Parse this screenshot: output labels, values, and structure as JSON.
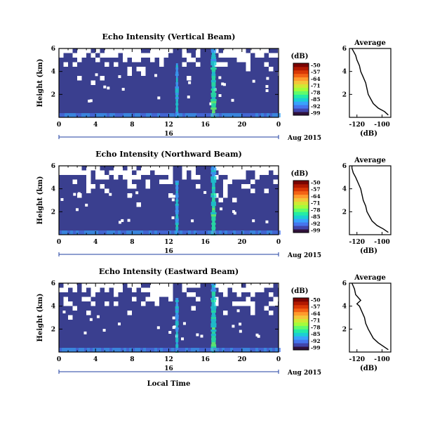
{
  "chart_data": [
    {
      "type": "heatmap",
      "title": "Echo Intensity (Vertical Beam)",
      "ylabel": "Height (km)",
      "xlabel": "",
      "x_ticks": [
        "0",
        "4",
        "8",
        "12",
        "16",
        "20",
        "0"
      ],
      "y_ticks": [
        "2",
        "4",
        "6"
      ],
      "xlim": [
        0,
        24
      ],
      "ylim": [
        0,
        6
      ],
      "date_day": "16",
      "date_label": "Aug 2015",
      "colorbar_label": "(dB)",
      "colorbar_ticks": [
        "-50",
        "-57",
        "-64",
        "-71",
        "-78",
        "-85",
        "-92",
        "-99"
      ],
      "colorbar_range": [
        -99,
        -50
      ],
      "average": {
        "title": "Average",
        "xlabel": "(dB)",
        "x_ticks": [
          "-120",
          "-100"
        ],
        "xlim": [
          -126,
          -93
        ],
        "y_ticks": [
          "2",
          "4",
          "6"
        ],
        "ylim": [
          0,
          6
        ],
        "profile": [
          [
            -95,
            0.2
          ],
          [
            -98,
            0.5
          ],
          [
            -103,
            0.8
          ],
          [
            -107,
            1.2
          ],
          [
            -109,
            1.6
          ],
          [
            -111,
            2.0
          ],
          [
            -112,
            2.5
          ],
          [
            -113,
            3.0
          ],
          [
            -115,
            3.5
          ],
          [
            -117,
            4.0
          ],
          [
            -118,
            4.5
          ],
          [
            -120,
            5.0
          ],
          [
            -121,
            5.4
          ],
          [
            -123,
            5.8
          ],
          [
            -124,
            6.0
          ]
        ]
      }
    },
    {
      "type": "heatmap",
      "title": "Echo Intensity (Northward Beam)",
      "ylabel": "Height (km)",
      "xlabel": "",
      "x_ticks": [
        "0",
        "4",
        "8",
        "12",
        "16",
        "20",
        "0"
      ],
      "y_ticks": [
        "2",
        "4",
        "6"
      ],
      "xlim": [
        0,
        24
      ],
      "ylim": [
        0,
        6
      ],
      "date_day": "16",
      "date_label": "Aug 2015",
      "colorbar_label": "(dB)",
      "colorbar_ticks": [
        "-50",
        "-57",
        "-64",
        "-71",
        "-78",
        "-85",
        "-92",
        "-99"
      ],
      "colorbar_range": [
        -99,
        -50
      ],
      "average": {
        "title": "Average",
        "xlabel": "(dB)",
        "x_ticks": [
          "-120",
          "-100"
        ],
        "xlim": [
          -126,
          -93
        ],
        "y_ticks": [
          "2",
          "4",
          "6"
        ],
        "ylim": [
          0,
          6
        ],
        "profile": [
          [
            -95,
            0.2
          ],
          [
            -99,
            0.5
          ],
          [
            -104,
            0.8
          ],
          [
            -108,
            1.2
          ],
          [
            -110,
            1.6
          ],
          [
            -112,
            2.0
          ],
          [
            -113,
            2.5
          ],
          [
            -115,
            3.0
          ],
          [
            -116,
            3.5
          ],
          [
            -117,
            4.0
          ],
          [
            -119,
            4.5
          ],
          [
            -121,
            5.0
          ],
          [
            -123,
            5.4
          ],
          [
            -124,
            5.8
          ],
          [
            -124,
            6.0
          ]
        ]
      }
    },
    {
      "type": "heatmap",
      "title": "Echo Intensity (Eastward Beam)",
      "ylabel": "Height (km)",
      "xlabel": "Local Time",
      "x_ticks": [
        "0",
        "4",
        "8",
        "12",
        "16",
        "20",
        "0"
      ],
      "y_ticks": [
        "2",
        "4",
        "6"
      ],
      "xlim": [
        0,
        24
      ],
      "ylim": [
        0,
        6
      ],
      "date_day": "16",
      "date_label": "Aug 2015",
      "colorbar_label": "(dB)",
      "colorbar_ticks": [
        "-50",
        "-57",
        "-64",
        "-71",
        "-78",
        "-85",
        "-92",
        "-99"
      ],
      "colorbar_range": [
        -99,
        -50
      ],
      "average": {
        "title": "Average",
        "xlabel": "(dB)",
        "x_ticks": [
          "-120",
          "-100"
        ],
        "xlim": [
          -126,
          -93
        ],
        "y_ticks": [
          "2",
          "4",
          "6"
        ],
        "ylim": [
          0,
          6
        ],
        "profile": [
          [
            -95,
            0.2
          ],
          [
            -99,
            0.5
          ],
          [
            -103,
            0.8
          ],
          [
            -107,
            1.2
          ],
          [
            -109,
            1.6
          ],
          [
            -111,
            2.0
          ],
          [
            -113,
            2.5
          ],
          [
            -114,
            3.0
          ],
          [
            -116,
            3.5
          ],
          [
            -118,
            4.0
          ],
          [
            -120,
            4.2
          ],
          [
            -117,
            4.5
          ],
          [
            -121,
            5.0
          ],
          [
            -122,
            5.5
          ],
          [
            -124,
            6.0
          ]
        ]
      }
    }
  ],
  "colors": {
    "background_field": "#3a3f8f",
    "colormap": [
      "#30123b",
      "#4145ab",
      "#4675ed",
      "#39a2fc",
      "#1bcfd4",
      "#24eca6",
      "#61fc6c",
      "#a4fc3b",
      "#d1e834",
      "#f3c63a",
      "#fe9b2d",
      "#f36315",
      "#d93806",
      "#b11901",
      "#7a0402"
    ],
    "line": "#000000",
    "date_axis": "#1f3fa0"
  }
}
